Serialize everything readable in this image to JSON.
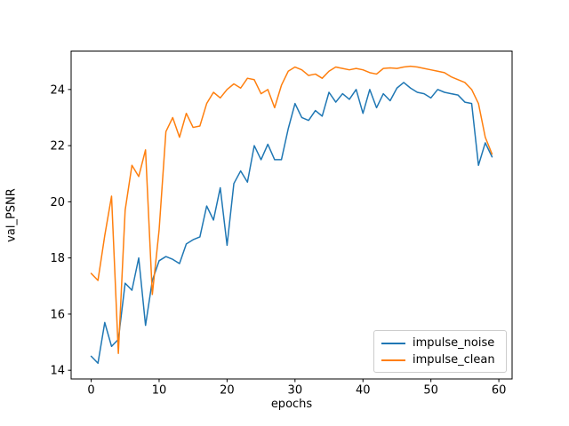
{
  "chart_data": {
    "type": "line",
    "title": "",
    "xlabel": "epochs",
    "ylabel": "val_PSNR",
    "grid": false,
    "legend_position": "lower right",
    "background": "#ffffff",
    "spine_color": "#000000",
    "tick_label_color": "#000000",
    "x_ticks": [
      0,
      10,
      20,
      30,
      40,
      50,
      60
    ],
    "y_ticks": [
      14,
      16,
      18,
      20,
      22,
      24
    ],
    "xlim": [
      -2.95,
      61.95
    ],
    "ylim": [
      13.69,
      25.37
    ],
    "x": [
      0,
      1,
      2,
      3,
      4,
      5,
      6,
      7,
      8,
      9,
      10,
      11,
      12,
      13,
      14,
      15,
      16,
      17,
      18,
      19,
      20,
      21,
      22,
      23,
      24,
      25,
      26,
      27,
      28,
      29,
      30,
      31,
      32,
      33,
      34,
      35,
      36,
      37,
      38,
      39,
      40,
      41,
      42,
      43,
      44,
      45,
      46,
      47,
      48,
      49,
      50,
      51,
      52,
      53,
      54,
      55,
      56,
      57,
      58,
      59
    ],
    "series": [
      {
        "name": "impulse_noise",
        "color": "#1f77b4",
        "values": [
          14.5,
          14.25,
          15.7,
          14.85,
          15.1,
          17.1,
          16.85,
          18.0,
          15.6,
          17.2,
          17.9,
          18.05,
          17.95,
          17.8,
          18.5,
          18.65,
          18.75,
          19.85,
          19.35,
          20.5,
          18.45,
          20.65,
          21.1,
          20.7,
          22.0,
          21.5,
          22.05,
          21.5,
          21.5,
          22.6,
          23.5,
          23.0,
          22.9,
          23.25,
          23.05,
          23.9,
          23.55,
          23.85,
          23.65,
          24.0,
          23.15,
          24.0,
          23.35,
          23.85,
          23.6,
          24.05,
          24.25,
          24.05,
          23.9,
          23.85,
          23.7,
          24.0,
          23.9,
          23.85,
          23.8,
          23.55,
          23.5,
          21.3,
          22.1,
          21.6
        ]
      },
      {
        "name": "impulse_clean",
        "color": "#ff7f0e",
        "values": [
          17.45,
          17.2,
          18.8,
          20.2,
          14.6,
          19.7,
          21.3,
          20.9,
          21.85,
          16.7,
          19.0,
          22.5,
          23.0,
          22.3,
          23.15,
          22.65,
          22.7,
          23.5,
          23.9,
          23.7,
          24.0,
          24.2,
          24.05,
          24.4,
          24.35,
          23.85,
          24.0,
          23.35,
          24.15,
          24.65,
          24.8,
          24.7,
          24.5,
          24.55,
          24.4,
          24.65,
          24.8,
          24.75,
          24.7,
          24.75,
          24.7,
          24.6,
          24.55,
          24.75,
          24.77,
          24.75,
          24.8,
          24.83,
          24.8,
          24.75,
          24.7,
          24.65,
          24.6,
          24.45,
          24.35,
          24.25,
          24.0,
          23.5,
          22.3,
          21.7
        ]
      }
    ]
  },
  "legend": {
    "items": [
      {
        "label": "impulse_noise",
        "color": "#1f77b4"
      },
      {
        "label": "impulse_clean",
        "color": "#ff7f0e"
      }
    ]
  }
}
